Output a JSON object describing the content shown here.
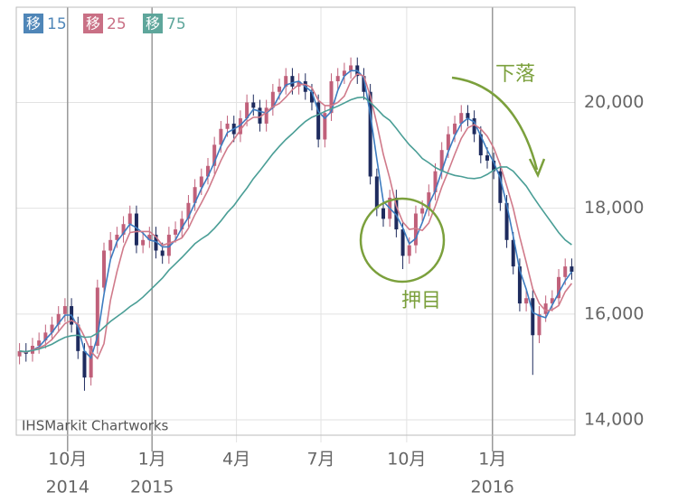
{
  "chart_data": {
    "type": "candlestick",
    "source": "IHSMarkit Chartworks",
    "ylim": [
      13710,
      21800
    ],
    "yticks": [
      {
        "value": 14000,
        "label": "14,000"
      },
      {
        "value": 16000,
        "label": "16,000"
      },
      {
        "value": 18000,
        "label": "18,000"
      },
      {
        "value": 20000,
        "label": "20,000"
      }
    ],
    "xticks": [
      {
        "value": 7.4,
        "label": "10月",
        "year": "2014"
      },
      {
        "value": 20.4,
        "label": "1月",
        "year": "2015"
      },
      {
        "value": 33.4,
        "label": "4月"
      },
      {
        "value": 46.4,
        "label": "7月"
      },
      {
        "value": 59.6,
        "label": "10月"
      },
      {
        "value": 72.8,
        "label": "1月",
        "year": "2016"
      }
    ],
    "grid": true,
    "up_color": "#c0607a",
    "down_color": "#1e2b5e",
    "legend_badge": "移",
    "open": [
      15200,
      15300,
      15250,
      15400,
      15500,
      15650,
      15800,
      16000,
      16150,
      15800,
      15300,
      14800,
      15400,
      16500,
      17200,
      17400,
      17500,
      17700,
      17900,
      17300,
      17400,
      17500,
      17200,
      17100,
      17500,
      17600,
      17800,
      18100,
      18400,
      18600,
      18800,
      19200,
      19500,
      19600,
      19400,
      19700,
      20000,
      19900,
      19600,
      19900,
      20200,
      20300,
      20500,
      20300,
      20400,
      20200,
      20000,
      19300,
      19800,
      20400,
      20500,
      20600,
      20700,
      20500,
      20200,
      18600,
      18000,
      17800,
      18200,
      17600,
      17100,
      17300,
      17900,
      18000,
      18300,
      18700,
      19100,
      19400,
      19600,
      19800,
      19700,
      19400,
      19000,
      18900,
      18700,
      18100,
      17400,
      16900,
      16200,
      16300,
      15600,
      16000,
      16200,
      16300,
      16700,
      16900
    ],
    "high": [
      15450,
      15450,
      15550,
      15650,
      15800,
      15950,
      16150,
      16300,
      16300,
      15950,
      15450,
      15550,
      16650,
      17350,
      17550,
      17650,
      17850,
      18050,
      18050,
      17550,
      17650,
      17650,
      17350,
      17650,
      17750,
      17950,
      18250,
      18550,
      18750,
      18950,
      19350,
      19650,
      19750,
      19750,
      19850,
      20150,
      20150,
      20050,
      20050,
      20350,
      20450,
      20650,
      20650,
      20550,
      20550,
      20350,
      20150,
      19950,
      20550,
      20650,
      20750,
      20850,
      20850,
      20650,
      20350,
      18750,
      18150,
      18350,
      18350,
      17750,
      17450,
      18050,
      18150,
      18450,
      18850,
      19250,
      19550,
      19750,
      19950,
      19950,
      19850,
      19550,
      19150,
      19050,
      18850,
      18250,
      17550,
      17050,
      16450,
      16450,
      16150,
      16350,
      16450,
      16850,
      17050,
      17050
    ],
    "low": [
      15050,
      15100,
      15100,
      15250,
      15350,
      15500,
      15650,
      15850,
      15650,
      15150,
      14550,
      14650,
      15250,
      16350,
      17050,
      17250,
      17350,
      17550,
      17150,
      17150,
      17250,
      17050,
      16950,
      16950,
      17350,
      17450,
      17650,
      17950,
      18250,
      18450,
      18650,
      19050,
      19350,
      19250,
      19250,
      19550,
      19750,
      19450,
      19450,
      19750,
      20050,
      20150,
      20150,
      20150,
      20050,
      19850,
      19150,
      19150,
      19650,
      20250,
      20350,
      20450,
      20350,
      20050,
      18450,
      17850,
      17650,
      17650,
      17450,
      16850,
      16950,
      17150,
      17750,
      17850,
      18150,
      18550,
      18950,
      19250,
      19450,
      19550,
      19250,
      18850,
      18750,
      18550,
      17950,
      17250,
      16750,
      16050,
      16050,
      14850,
      15450,
      15850,
      16050,
      16150,
      16550,
      16650
    ],
    "close": [
      15300,
      15250,
      15400,
      15500,
      15650,
      15800,
      16000,
      16150,
      15800,
      15300,
      14800,
      15400,
      16500,
      17200,
      17400,
      17500,
      17700,
      17900,
      17300,
      17400,
      17500,
      17200,
      17100,
      17500,
      17600,
      17800,
      18100,
      18400,
      18600,
      18800,
      19200,
      19500,
      19600,
      19400,
      19700,
      20000,
      19900,
      19600,
      19900,
      20200,
      20300,
      20500,
      20300,
      20400,
      20200,
      20000,
      19300,
      19800,
      20400,
      20500,
      20600,
      20700,
      20500,
      20200,
      18600,
      18000,
      17800,
      18200,
      17600,
      17100,
      17300,
      17900,
      18000,
      18300,
      18700,
      19100,
      19400,
      19600,
      19800,
      19700,
      19400,
      19000,
      18900,
      18700,
      18100,
      17400,
      16900,
      16200,
      16300,
      15600,
      16000,
      16200,
      16300,
      16700,
      16900,
      16800
    ],
    "series": [
      {
        "name": "15",
        "color": "#3d7cc0",
        "badge_color": "#4f86b8",
        "values": [
          15300,
          15280,
          15320,
          15380,
          15520,
          15650,
          15820,
          15980,
          15980,
          15750,
          15300,
          15170,
          15570,
          16370,
          17030,
          17370,
          17530,
          17700,
          17630,
          17530,
          17400,
          17370,
          17270,
          17270,
          17400,
          17630,
          17830,
          18100,
          18370,
          18600,
          18870,
          19170,
          19430,
          19500,
          19570,
          19700,
          19870,
          19830,
          19800,
          19900,
          20130,
          20330,
          20370,
          20400,
          20300,
          20200,
          19830,
          19700,
          19830,
          20230,
          20500,
          20600,
          20600,
          20470,
          19770,
          18930,
          18130,
          18000,
          17870,
          17630,
          17330,
          17430,
          17730,
          18070,
          18330,
          18700,
          19070,
          19370,
          19600,
          19700,
          19630,
          19370,
          19100,
          18870,
          18570,
          18070,
          17470,
          16830,
          16470,
          16030,
          15970,
          15930,
          16170,
          16400,
          16630,
          16800
        ]
      },
      {
        "name": "25",
        "color": "#d07a8a",
        "badge_color": "#c97085",
        "values": [
          15300,
          15280,
          15320,
          15360,
          15420,
          15520,
          15670,
          15820,
          15880,
          15810,
          15570,
          15290,
          15160,
          15440,
          16260,
          16800,
          17260,
          17540,
          17560,
          17560,
          17560,
          17460,
          17300,
          17340,
          17380,
          17440,
          17620,
          17880,
          18100,
          18340,
          18620,
          18900,
          19140,
          19300,
          19480,
          19640,
          19720,
          19720,
          19820,
          19920,
          19980,
          20100,
          20240,
          20340,
          20340,
          20280,
          20040,
          19940,
          19940,
          20000,
          20120,
          20400,
          20540,
          20500,
          20120,
          19600,
          19020,
          18560,
          18040,
          17740,
          17600,
          17620,
          17580,
          17720,
          18040,
          18400,
          18700,
          19020,
          19320,
          19520,
          19580,
          19500,
          19360,
          19140,
          18820,
          18420,
          18000,
          17460,
          16980,
          16480,
          16200,
          16060,
          16080,
          16160,
          16420,
          16580
        ]
      },
      {
        "name": "75",
        "color": "#4a9e96",
        "badge_color": "#5ea69b",
        "values": [
          15300,
          15290,
          15310,
          15340,
          15380,
          15430,
          15500,
          15560,
          15590,
          15600,
          15560,
          15570,
          15640,
          15750,
          15860,
          15950,
          16040,
          16140,
          16220,
          16320,
          16440,
          16560,
          16680,
          16830,
          16950,
          17070,
          17200,
          17330,
          17420,
          17500,
          17620,
          17760,
          17920,
          18050,
          18220,
          18380,
          18560,
          18710,
          18870,
          19030,
          19170,
          19300,
          19410,
          19530,
          19640,
          19720,
          19770,
          19830,
          19880,
          19930,
          19990,
          20050,
          20090,
          20100,
          20000,
          19880,
          19750,
          19660,
          19510,
          19350,
          19200,
          19080,
          18940,
          18860,
          18770,
          18710,
          18660,
          18620,
          18600,
          18570,
          18560,
          18580,
          18640,
          18720,
          18780,
          18780,
          18700,
          18560,
          18420,
          18230,
          18050,
          17880,
          17710,
          17540,
          17400,
          17310
        ]
      }
    ],
    "annotations": [
      {
        "text": "下落",
        "color": "#7ba03c"
      },
      {
        "text": "押目",
        "color": "#7ba03c"
      }
    ]
  }
}
